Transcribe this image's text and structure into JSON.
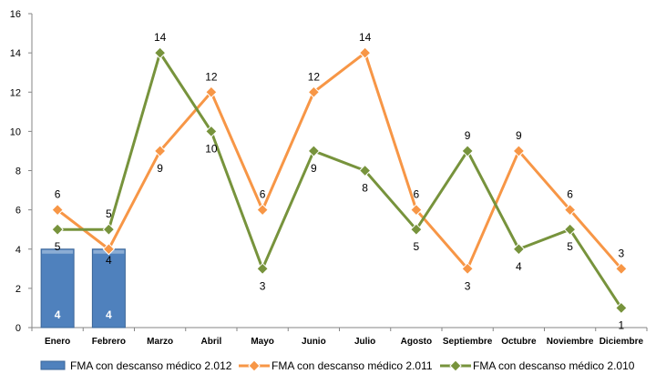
{
  "chart_data": {
    "type": "line",
    "categories": [
      "Enero",
      "Febrero",
      "Marzo",
      "Abril",
      "Mayo",
      "Junio",
      "Julio",
      "Agosto",
      "Septiembre",
      "Octubre",
      "Noviembre",
      "Diciembre"
    ],
    "ylim": [
      0,
      16
    ],
    "yticks": [
      0,
      2,
      4,
      6,
      8,
      10,
      12,
      14,
      16
    ],
    "grid": false,
    "legend_position": "bottom",
    "series": [
      {
        "name": "FMA con descanso médico 2.012",
        "kind": "bar",
        "color": "#4F81BD",
        "values": [
          4,
          4,
          null,
          null,
          null,
          null,
          null,
          null,
          null,
          null,
          null,
          null
        ],
        "labels": [
          "4",
          "4",
          "",
          "",
          "",
          "",
          "",
          "",
          "",
          "",
          "",
          ""
        ],
        "bar_top_labels": [
          "",
          "4",
          "",
          "",
          "",
          "",
          "",
          "",
          "",
          "",
          "",
          ""
        ]
      },
      {
        "name": "FMA con descanso médico 2.011",
        "kind": "line",
        "color": "#F79646",
        "values": [
          6,
          4,
          9,
          12,
          6,
          12,
          14,
          6,
          3,
          9,
          6,
          3
        ],
        "labels": [
          "6",
          "",
          "9",
          "12",
          "6",
          "12",
          "14",
          "6",
          "3",
          "9",
          "6",
          "3"
        ]
      },
      {
        "name": "FMA con descanso médico 2.010",
        "kind": "line",
        "color": "#77933C",
        "values": [
          5,
          5,
          14,
          10,
          3,
          9,
          8,
          5,
          9,
          4,
          5,
          1
        ],
        "labels": [
          "5",
          "5",
          "14",
          "10",
          "3",
          "9",
          "8",
          "5",
          "9",
          "4",
          "5",
          "1"
        ]
      }
    ]
  }
}
